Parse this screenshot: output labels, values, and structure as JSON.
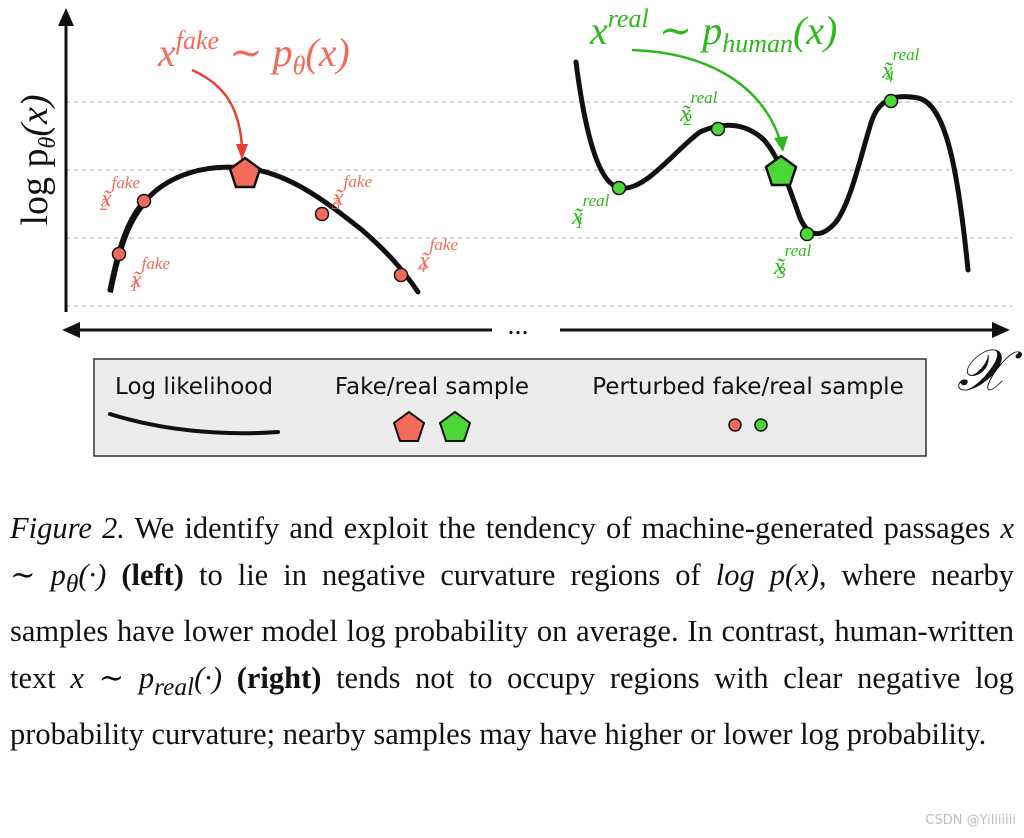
{
  "figure": {
    "y_axis_label": "log p",
    "y_axis_sub": "θ",
    "y_axis_paren": "(x)",
    "x_axis_symbol": "𝒳",
    "ellipsis": "...",
    "left_title": {
      "var": "x",
      "sup": "fake",
      "rest": "∼ p",
      "sub": "θ",
      "paren": "(x)"
    },
    "right_title": {
      "var": "x",
      "sup": "real",
      "rest": "∼ p",
      "sub": "human",
      "paren": "(x)"
    },
    "left_points": [
      {
        "sup": "fake",
        "sub": "1"
      },
      {
        "sup": "fake",
        "sub": "2"
      },
      {
        "sup": "fake",
        "sub": "3"
      },
      {
        "sup": "fake",
        "sub": "4"
      }
    ],
    "right_points": [
      {
        "sup": "real",
        "sub": "1"
      },
      {
        "sup": "real",
        "sub": "2"
      },
      {
        "sup": "real",
        "sub": "3"
      },
      {
        "sup": "real",
        "sub": "4"
      }
    ],
    "legend": {
      "log_likelihood": "Log likelihood",
      "sample": "Fake/real sample",
      "perturbed": "Perturbed fake/real sample"
    },
    "colors": {
      "fake": "#f26b5b",
      "real": "#4dd637",
      "fake_text": "#f26b5b",
      "real_text": "#2fb81b",
      "legend_bg": "#ececec"
    }
  },
  "caption": {
    "label": "Figure 2.",
    "t1": "We identify and exploit the tendency of machine-generated passages",
    "m1": "x ∼ p",
    "m1_sub": "θ",
    "m1_tail": "(·)",
    "b1": "(left)",
    "t2": "to lie in negative curvature regions of",
    "m2": "log p(x)",
    "t3": ", where nearby samples have lower model log probability on average.  In contrast, human-written text",
    "m3": "x ∼ p",
    "m3_sub": "real",
    "m3_tail": "(·)",
    "b2": "(right)",
    "t4": "tends not to occupy regions with clear negative log probability curvature; nearby samples may have higher or lower log probability."
  },
  "watermark": "CSDN @Yiliiiiii"
}
